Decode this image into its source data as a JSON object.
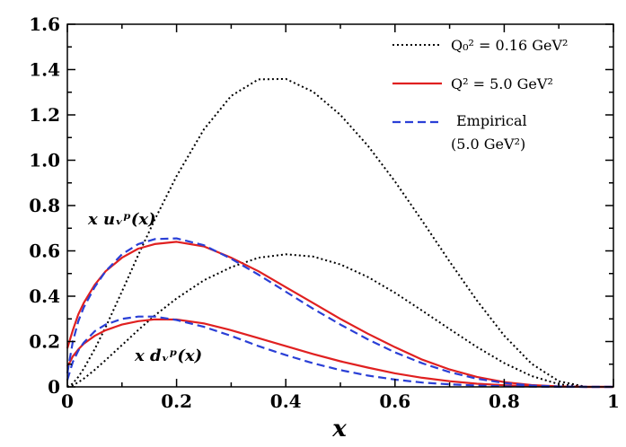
{
  "chart_data": {
    "type": "line",
    "title": "",
    "xlabel": "x",
    "ylabel": "",
    "xlim": [
      0,
      1
    ],
    "ylim": [
      0,
      1.6
    ],
    "grid": false,
    "legend_position": "top-right",
    "x_ticks": [
      {
        "value": 0,
        "label": "0"
      },
      {
        "value": 0.2,
        "label": "0.2"
      },
      {
        "value": 0.4,
        "label": "0.4"
      },
      {
        "value": 0.6,
        "label": "0.6"
      },
      {
        "value": 0.8,
        "label": "0.8"
      },
      {
        "value": 1,
        "label": "1"
      }
    ],
    "y_ticks": [
      {
        "value": 0,
        "label": "0"
      },
      {
        "value": 0.2,
        "label": "0.2"
      },
      {
        "value": 0.4,
        "label": "0.4"
      },
      {
        "value": 0.6,
        "label": "0.6"
      },
      {
        "value": 0.8,
        "label": "0.8"
      },
      {
        "value": 1.0,
        "label": "1.0"
      },
      {
        "value": 1.2,
        "label": "1.2"
      },
      {
        "value": 1.4,
        "label": "1.4"
      },
      {
        "value": 1.6,
        "label": "1.6"
      }
    ],
    "legend": [
      {
        "label": "Q₀² = 0.16 GeV²",
        "style": "dotted",
        "color": "#000000"
      },
      {
        "label": "Q² = 5.0 GeV²",
        "style": "solid",
        "color": "#e02020"
      },
      {
        "label": "Empirical",
        "label2": "(5.0 GeV²)",
        "style": "dashed",
        "color": "#2a3fd6"
      }
    ],
    "annotations": [
      {
        "text": "x uᵥᵖ(x)",
        "x": 0.07,
        "y": 0.73
      },
      {
        "text": "x dᵥᵖ(x)",
        "x": 0.25,
        "y": 0.13
      }
    ],
    "x": [
      0,
      0.005,
      0.01,
      0.02,
      0.03,
      0.05,
      0.07,
      0.1,
      0.13,
      0.16,
      0.2,
      0.25,
      0.3,
      0.35,
      0.4,
      0.45,
      0.5,
      0.55,
      0.6,
      0.65,
      0.7,
      0.75,
      0.8,
      0.85,
      0.9,
      0.95,
      1.0
    ],
    "series": [
      {
        "name": "x u_v^p(x), Q0^2 = 0.16 GeV^2",
        "style": "dotted",
        "color": "#000000",
        "values": [
          0,
          0.0056,
          0.0158,
          0.044,
          0.08,
          0.166,
          0.263,
          0.421,
          0.582,
          0.738,
          0.93,
          1.136,
          1.284,
          1.357,
          1.359,
          1.302,
          1.2,
          1.065,
          0.906,
          0.732,
          0.553,
          0.381,
          0.226,
          0.102,
          0.025,
          0.0,
          0
        ]
      },
      {
        "name": "x d_v^p(x), Q0^2 = 0.16 GeV^2",
        "style": "dotted",
        "color": "#000000",
        "values": [
          0,
          0.0025,
          0.0071,
          0.02,
          0.036,
          0.075,
          0.118,
          0.184,
          0.251,
          0.315,
          0.39,
          0.47,
          0.528,
          0.57,
          0.585,
          0.575,
          0.54,
          0.485,
          0.415,
          0.336,
          0.255,
          0.176,
          0.105,
          0.048,
          0.012,
          0.0,
          0
        ]
      },
      {
        "name": "x u_v^p(x), Q^2 = 5.0 GeV^2",
        "style": "solid",
        "color": "#e02020",
        "values": [
          0.17,
          0.21,
          0.25,
          0.32,
          0.37,
          0.45,
          0.51,
          0.57,
          0.61,
          0.63,
          0.64,
          0.62,
          0.57,
          0.51,
          0.44,
          0.37,
          0.3,
          0.235,
          0.175,
          0.12,
          0.077,
          0.044,
          0.021,
          0.008,
          0.002,
          0.0,
          0
        ]
      },
      {
        "name": "x d_v^p(x), Q^2 = 5.0 GeV^2",
        "style": "solid",
        "color": "#e02020",
        "values": [
          0.09,
          0.11,
          0.135,
          0.165,
          0.19,
          0.225,
          0.25,
          0.275,
          0.29,
          0.298,
          0.297,
          0.28,
          0.25,
          0.215,
          0.18,
          0.145,
          0.113,
          0.085,
          0.06,
          0.04,
          0.025,
          0.014,
          0.007,
          0.003,
          0.001,
          0.0,
          0
        ]
      },
      {
        "name": "x u_v^p(x), Empirical (5.0 GeV^2)",
        "style": "dashed",
        "color": "#2a3fd6",
        "values": [
          0.06,
          0.13,
          0.2,
          0.29,
          0.35,
          0.44,
          0.51,
          0.585,
          0.63,
          0.652,
          0.655,
          0.625,
          0.565,
          0.495,
          0.42,
          0.345,
          0.275,
          0.21,
          0.152,
          0.104,
          0.065,
          0.036,
          0.017,
          0.006,
          0.0015,
          0.0,
          0
        ]
      },
      {
        "name": "x d_v^p(x), Empirical (5.0 GeV^2)",
        "style": "dashed",
        "color": "#2a3fd6",
        "values": [
          0.03,
          0.07,
          0.11,
          0.16,
          0.195,
          0.245,
          0.275,
          0.3,
          0.31,
          0.31,
          0.295,
          0.265,
          0.225,
          0.18,
          0.14,
          0.104,
          0.074,
          0.05,
          0.032,
          0.019,
          0.011,
          0.006,
          0.0025,
          0.001,
          0.0,
          0.0,
          0
        ]
      }
    ]
  }
}
